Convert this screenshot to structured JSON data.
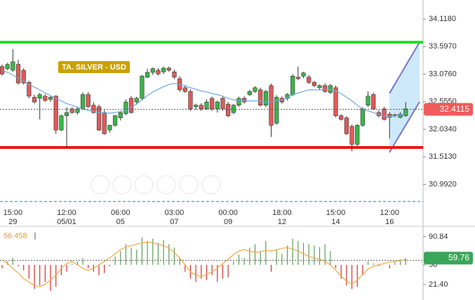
{
  "chart_data": [
    {
      "type": "candlestick",
      "title": "TA. SILVER - USD",
      "categories": [
        null,
        null,
        [
          "15:00",
          "29"
        ],
        null,
        null,
        null,
        null,
        null,
        null,
        null,
        null,
        null,
        [
          "12:00",
          "05/01"
        ],
        null,
        null,
        null,
        null,
        null,
        null,
        null,
        null,
        null,
        [
          "06:00",
          "05"
        ],
        null,
        null,
        null,
        null,
        null,
        null,
        null,
        null,
        null,
        [
          "03:00",
          "07"
        ],
        null,
        null,
        null,
        null,
        null,
        null,
        null,
        null,
        null,
        [
          "00:00",
          "09"
        ],
        null,
        null,
        null,
        null,
        null,
        null,
        null,
        null,
        null,
        [
          "18:00",
          "12"
        ],
        null,
        null,
        null,
        null,
        null,
        null,
        null,
        null,
        null,
        [
          "15:00",
          "14"
        ],
        null,
        null,
        null,
        null,
        null,
        null,
        null,
        null,
        null,
        [
          "12:00",
          "16"
        ],
        null,
        null,
        null
      ],
      "candles": [
        [
          33.22,
          33.26,
          33.05,
          33.08
        ],
        [
          33.18,
          33.29,
          33.15,
          33.26
        ],
        [
          33.15,
          33.55,
          33.12,
          33.31
        ],
        [
          33.26,
          33.35,
          32.88,
          32.91
        ],
        [
          33.15,
          33.19,
          32.88,
          32.91
        ],
        [
          32.92,
          32.95,
          32.62,
          32.66
        ],
        [
          32.64,
          32.69,
          32.52,
          32.55
        ],
        [
          32.62,
          32.72,
          32.22,
          32.69
        ],
        [
          32.66,
          32.7,
          32.55,
          32.58
        ],
        [
          32.6,
          32.66,
          32.55,
          32.64
        ],
        [
          32.66,
          32.68,
          31.95,
          32.02
        ],
        [
          32.02,
          32.31,
          32.0,
          32.29
        ],
        [
          32.29,
          32.45,
          31.69,
          32.35
        ],
        [
          32.42,
          32.45,
          32.33,
          32.35
        ],
        [
          32.35,
          32.46,
          32.31,
          32.42
        ],
        [
          32.42,
          32.73,
          32.4,
          32.69
        ],
        [
          32.69,
          32.74,
          32.44,
          32.46
        ],
        [
          32.49,
          32.55,
          32.33,
          32.35
        ],
        [
          32.46,
          32.5,
          32.0,
          32.02
        ],
        [
          32.35,
          32.4,
          31.93,
          31.95
        ],
        [
          32.02,
          32.12,
          31.97,
          32.11
        ],
        [
          32.11,
          32.31,
          32.08,
          32.29
        ],
        [
          32.25,
          32.38,
          32.2,
          32.35
        ],
        [
          32.33,
          32.6,
          32.3,
          32.55
        ],
        [
          32.62,
          32.66,
          32.33,
          32.35
        ],
        [
          32.55,
          32.65,
          32.5,
          32.62
        ],
        [
          32.62,
          33.06,
          32.58,
          33.04
        ],
        [
          33.02,
          33.18,
          33.0,
          33.11
        ],
        [
          33.11,
          33.2,
          33.06,
          33.18
        ],
        [
          33.15,
          33.19,
          33.05,
          33.08
        ],
        [
          33.12,
          33.22,
          33.08,
          33.19
        ],
        [
          33.19,
          33.22,
          33.12,
          33.15
        ],
        [
          33.12,
          33.16,
          32.98,
          33.02
        ],
        [
          32.99,
          33.04,
          32.74,
          32.78
        ],
        [
          32.82,
          32.86,
          32.72,
          32.75
        ],
        [
          32.75,
          32.79,
          32.38,
          32.42
        ],
        [
          32.46,
          32.52,
          32.4,
          32.49
        ],
        [
          32.49,
          32.53,
          32.38,
          32.42
        ],
        [
          32.42,
          32.6,
          32.4,
          32.55
        ],
        [
          32.62,
          32.65,
          32.38,
          32.42
        ],
        [
          32.42,
          32.58,
          32.35,
          32.55
        ],
        [
          32.62,
          32.66,
          32.38,
          32.42
        ],
        [
          32.51,
          32.55,
          32.26,
          32.29
        ],
        [
          32.35,
          32.51,
          32.32,
          32.49
        ],
        [
          32.49,
          32.65,
          32.46,
          32.62
        ],
        [
          32.62,
          32.66,
          32.52,
          32.55
        ],
        [
          32.69,
          32.78,
          32.66,
          32.75
        ],
        [
          32.75,
          32.85,
          32.72,
          32.82
        ],
        [
          32.78,
          32.82,
          32.46,
          32.49
        ],
        [
          32.49,
          32.78,
          32.45,
          32.75
        ],
        [
          32.86,
          32.9,
          31.89,
          32.11
        ],
        [
          32.15,
          32.68,
          32.12,
          32.64
        ],
        [
          32.62,
          32.66,
          32.52,
          32.55
        ],
        [
          32.62,
          32.72,
          32.58,
          32.69
        ],
        [
          32.69,
          33.08,
          32.66,
          33.04
        ],
        [
          33.02,
          33.22,
          32.96,
          32.99
        ],
        [
          33.04,
          33.12,
          33.0,
          33.1
        ],
        [
          33.02,
          33.06,
          32.89,
          32.92
        ],
        [
          32.92,
          32.95,
          32.83,
          32.86
        ],
        [
          32.82,
          32.88,
          32.78,
          32.86
        ],
        [
          32.86,
          32.9,
          32.72,
          32.75
        ],
        [
          32.73,
          32.89,
          32.7,
          32.86
        ],
        [
          32.82,
          32.86,
          32.26,
          32.29
        ],
        [
          32.29,
          32.32,
          32.2,
          32.22
        ],
        [
          32.25,
          32.28,
          31.93,
          31.95
        ],
        [
          32.09,
          32.12,
          31.62,
          31.75
        ],
        [
          31.75,
          32.13,
          31.72,
          32.11
        ],
        [
          32.11,
          32.45,
          32.08,
          32.42
        ],
        [
          32.49,
          32.75,
          32.46,
          32.66
        ],
        [
          32.69,
          32.73,
          32.4,
          32.42
        ],
        [
          32.35,
          32.4,
          32.26,
          32.29
        ],
        [
          32.42,
          32.46,
          32.2,
          32.22
        ],
        [
          32.32,
          32.36,
          31.86,
          32.26
        ],
        [
          32.29,
          32.33,
          32.26,
          32.31
        ],
        [
          32.26,
          32.36,
          32.24,
          32.32
        ],
        [
          32.29,
          32.55,
          32.27,
          32.42
        ]
      ],
      "ma": {
        "color": "#6fa8dc",
        "values": [
          33.15,
          33.11,
          33.06,
          33.0,
          32.95,
          32.88,
          32.83,
          32.78,
          32.72,
          32.67,
          32.62,
          32.57,
          32.52,
          32.49,
          32.45,
          32.42,
          32.39,
          32.37,
          32.35,
          32.34,
          32.34,
          32.35,
          32.37,
          32.39,
          32.45,
          32.51,
          32.59,
          32.67,
          32.74,
          32.79,
          32.84,
          32.88,
          32.9,
          32.88,
          32.86,
          32.82,
          32.79,
          32.76,
          32.74,
          32.71,
          32.69,
          32.66,
          32.62,
          32.59,
          32.58,
          32.57,
          32.57,
          32.57,
          32.57,
          32.55,
          32.55,
          32.57,
          32.59,
          32.63,
          32.69,
          32.72,
          32.75,
          32.78,
          32.78,
          32.78,
          32.79,
          32.79,
          32.76,
          32.71,
          32.64,
          32.57,
          32.49,
          32.42,
          32.38,
          32.35,
          32.31,
          32.29,
          32.27,
          32.29,
          32.31,
          32.34
        ]
      },
      "ylim": [
        30.56,
        34.478
      ],
      "yticks": [
        {
          "value": 34.118,
          "label": "34.1180"
        },
        {
          "value": 33.597,
          "label": "33.5970"
        },
        {
          "value": 33.076,
          "label": "33.0760"
        },
        {
          "value": 32.555,
          "label": "32.5550"
        },
        {
          "value": 32.034,
          "label": "32.0340"
        },
        {
          "value": 31.513,
          "label": "31.5130"
        },
        {
          "value": 30.992,
          "label": "30.9920"
        }
      ],
      "hlines": [
        {
          "value": 33.68,
          "color": "#22dd22"
        },
        {
          "value": 31.69,
          "color": "#ee1111"
        },
        {
          "value": 30.67,
          "color": "#7b9be0",
          "dashed": true
        }
      ],
      "last_price": 32.4115,
      "up_color": "#3cb54a",
      "down_color": "#e05a5a"
    },
    {
      "type": "oscillator",
      "indicator_value": 56.458,
      "histogram": [
        45,
        55,
        60,
        48,
        42,
        30,
        15,
        20,
        25,
        12,
        18,
        35,
        40,
        52,
        55,
        60,
        45,
        40,
        35,
        38,
        48,
        62,
        70,
        80,
        75,
        72,
        90,
        85,
        88,
        82,
        86,
        80,
        75,
        60,
        40,
        30,
        25,
        30,
        28,
        35,
        25,
        30,
        32,
        55,
        65,
        60,
        75,
        80,
        70,
        85,
        40,
        72,
        66,
        78,
        88,
        85,
        82,
        80,
        78,
        76,
        80,
        70,
        45,
        30,
        20,
        15,
        18,
        35,
        55,
        52,
        48,
        50,
        45,
        55,
        58,
        60
      ],
      "line": {
        "color": "#f5a742",
        "values": [
          57,
          52,
          45,
          38,
          30,
          25,
          20,
          18,
          22,
          28,
          35,
          45,
          52,
          55,
          50,
          45,
          42,
          45,
          50,
          55,
          60,
          66,
          72,
          76,
          78,
          80,
          82,
          83,
          82,
          80,
          78,
          74,
          68,
          60,
          50,
          40,
          35,
          33,
          36,
          40,
          45,
          52,
          58,
          65,
          70,
          72,
          70,
          68,
          69,
          71,
          70,
          72,
          74,
          75,
          73,
          70,
          66,
          62,
          60,
          58,
          55,
          50,
          42,
          34,
          26,
          22,
          28,
          36,
          44,
          48,
          50,
          52,
          54,
          55,
          56,
          58
        ]
      },
      "baseline": 50,
      "ylim": [
        -1,
        103
      ],
      "yticks": [
        90.84,
        50,
        {
          "value": 21.4,
          "label": "21.40"
        }
      ],
      "last_value": 59.76,
      "up_color": "#5a9e5a",
      "down_color": "#d03030"
    }
  ]
}
